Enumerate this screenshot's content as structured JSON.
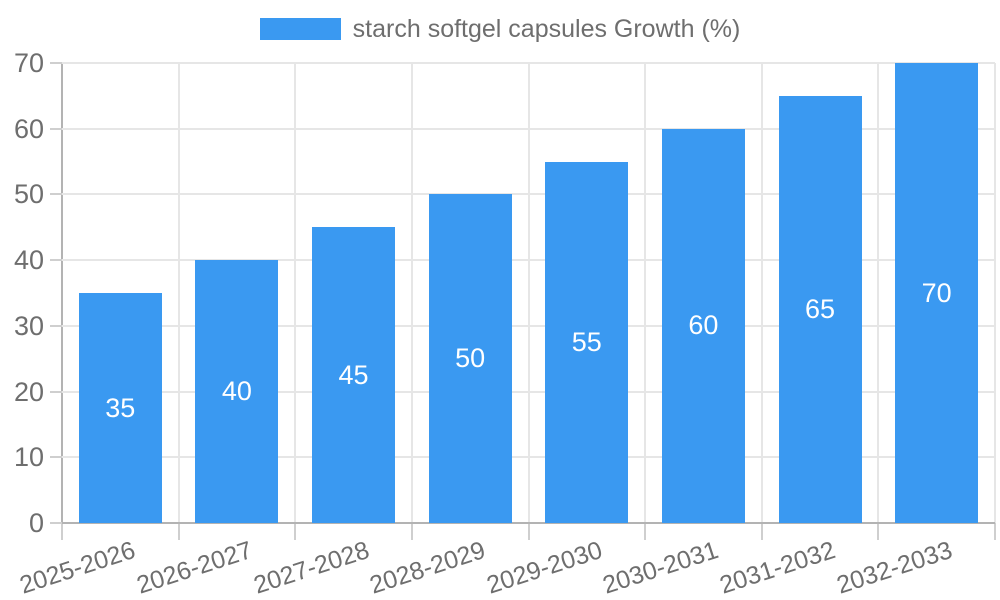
{
  "legend": {
    "label": "starch softgel capsules Growth (%)"
  },
  "colors": {
    "bar": "#3a99f1",
    "grid": "#e6e6e6",
    "axis": "#b3b3b3",
    "tick": "#cfcfcf",
    "text": "#6e6e6e",
    "value_text": "#ffffff"
  },
  "chart_data": {
    "type": "bar",
    "title": "",
    "series_name": "starch softgel capsules Growth (%)",
    "categories": [
      "2025-2026",
      "2026-2027",
      "2027-2028",
      "2028-2029",
      "2029-2030",
      "2030-2031",
      "2031-2032",
      "2032-2033"
    ],
    "values": [
      35,
      40,
      45,
      50,
      55,
      60,
      65,
      70
    ],
    "value_labels": [
      "35",
      "40",
      "45",
      "50",
      "55",
      "60",
      "65",
      "70"
    ],
    "xlabel": "",
    "ylabel": "",
    "ylim": [
      0,
      70
    ],
    "yticks": [
      0,
      10,
      20,
      30,
      40,
      50,
      60,
      70
    ],
    "grid": true,
    "legend_position": "top",
    "bar_label_position": "center"
  }
}
